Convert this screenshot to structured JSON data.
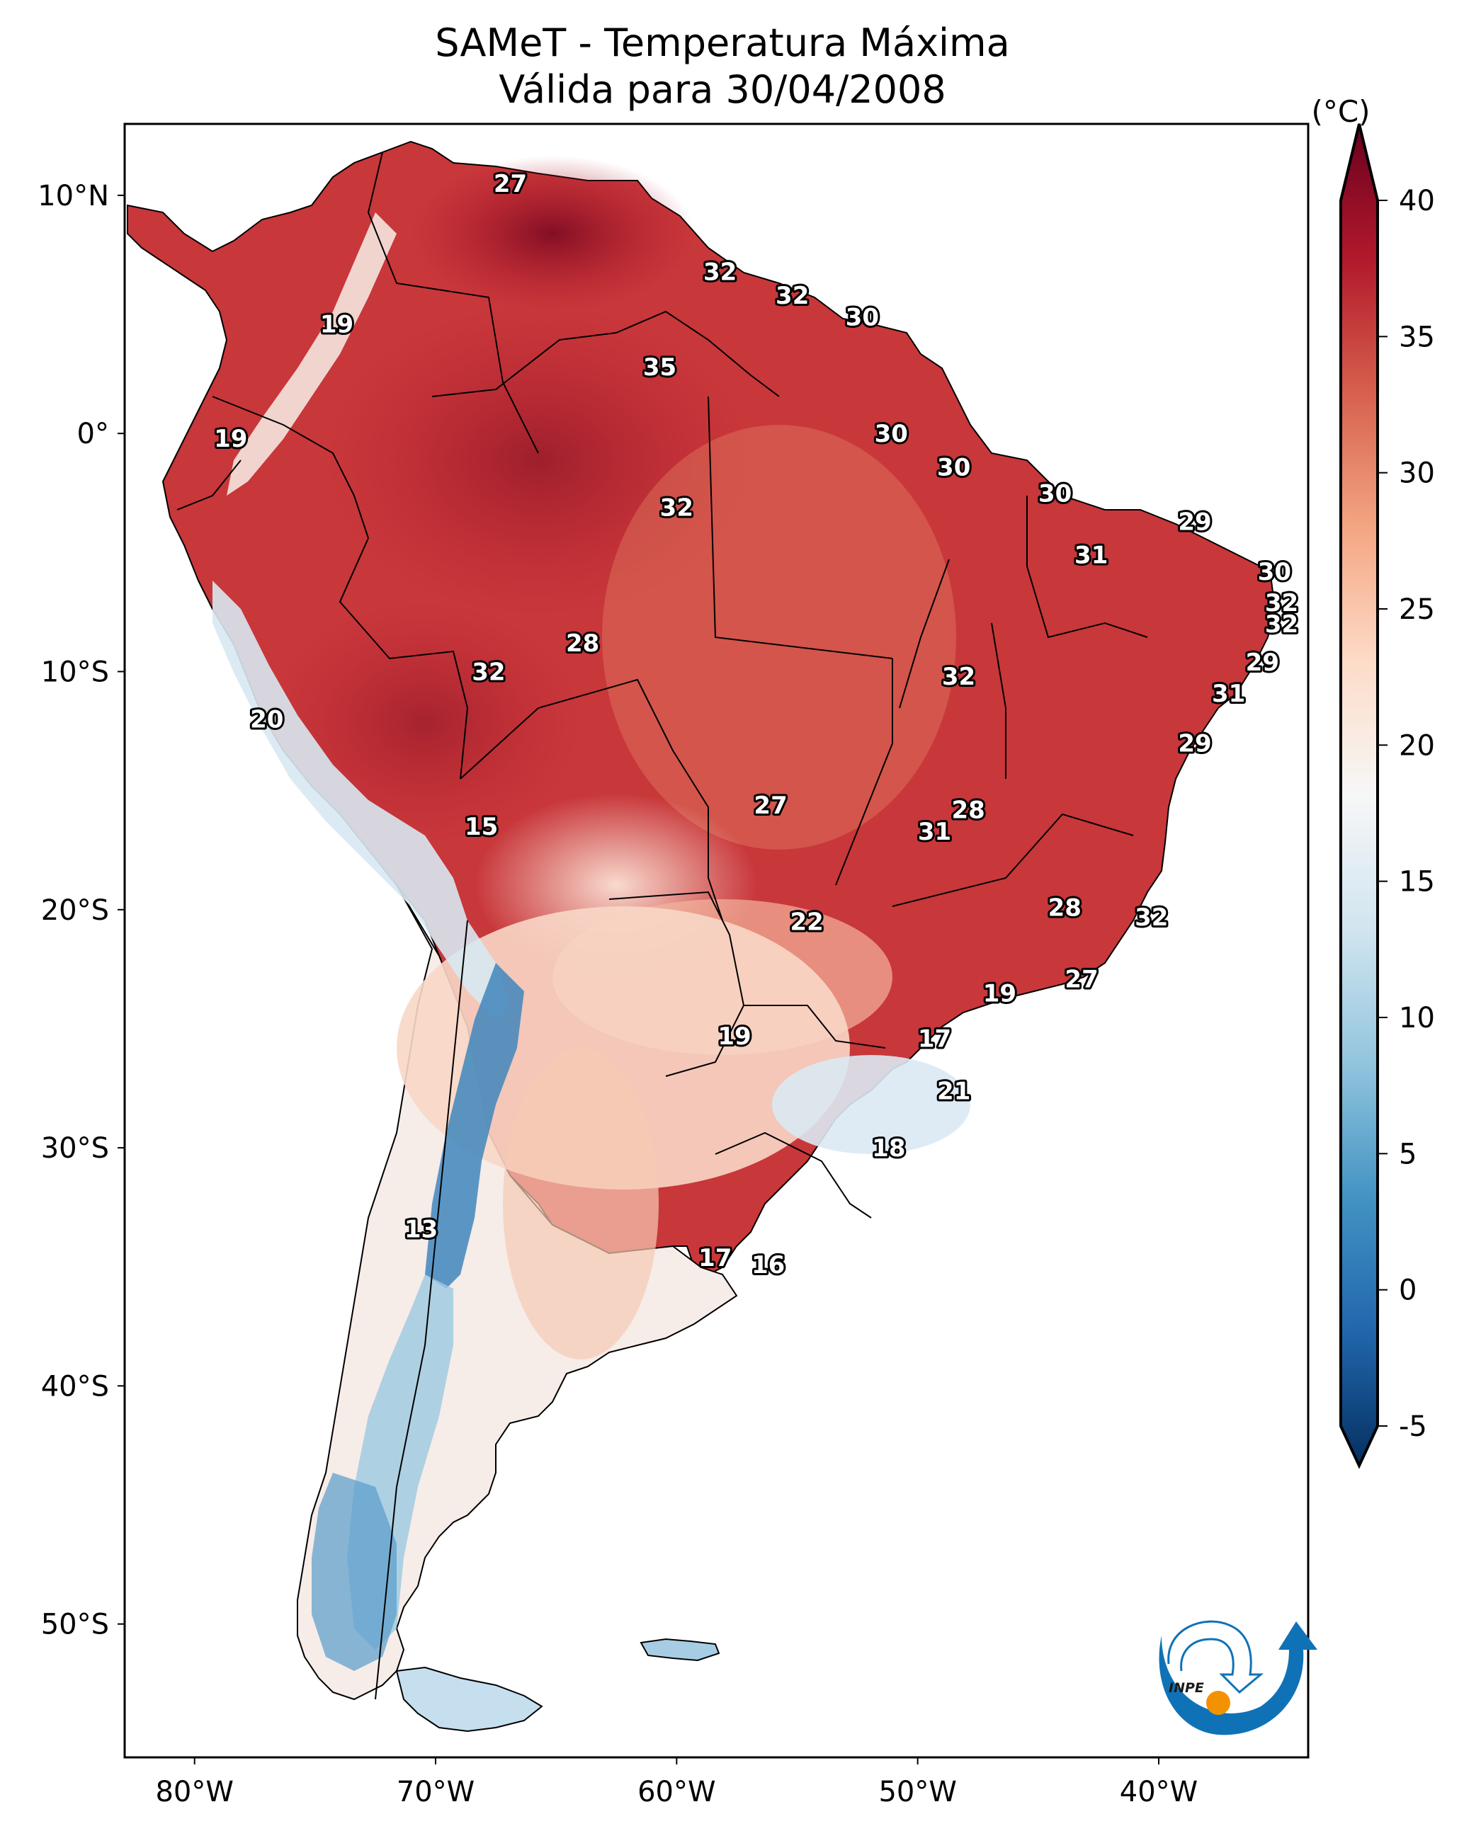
{
  "figure": {
    "title_line1": "SAMeT - Temperatura Máxima",
    "title_line2": "Válida para 30/04/2008",
    "logo_text": "INPE"
  },
  "chart_data": {
    "type": "heatmap",
    "subtype": "geographic filled-contour map of maximum temperature over South America",
    "title": "SAMeT - Temperatura Máxima",
    "subtitle": "Válida para 30/04/2008",
    "projection": "PlateCarree",
    "extent": {
      "lon": [
        -82.9,
        -33.8
      ],
      "lat": [
        -55.6,
        13.0
      ]
    },
    "x_ticks": [
      {
        "value": -80,
        "label": "80°W"
      },
      {
        "value": -70,
        "label": "70°W"
      },
      {
        "value": -60,
        "label": "60°W"
      },
      {
        "value": -50,
        "label": "50°W"
      },
      {
        "value": -40,
        "label": "40°W"
      }
    ],
    "y_ticks": [
      {
        "value": 10,
        "label": "10°N"
      },
      {
        "value": 0,
        "label": "0°"
      },
      {
        "value": -10,
        "label": "10°S"
      },
      {
        "value": -20,
        "label": "20°S"
      },
      {
        "value": -30,
        "label": "30°S"
      },
      {
        "value": -40,
        "label": "40°S"
      },
      {
        "value": -50,
        "label": "50°S"
      }
    ],
    "grid": false,
    "colorbar": {
      "label": "(°C)",
      "colormap": "RdBu_r",
      "range": [
        -5,
        40
      ],
      "extend": "both",
      "ticks": [
        -5,
        0,
        5,
        10,
        15,
        20,
        25,
        30,
        35,
        40
      ],
      "placement": "right",
      "stops": [
        "#053061",
        "#2166ac",
        "#4393c3",
        "#92c5de",
        "#d1e5f0",
        "#f7f7f7",
        "#fddbc7",
        "#f4a582",
        "#d6604d",
        "#b2182b",
        "#67001f"
      ]
    },
    "city_values": [
      {
        "lon": -66.9,
        "lat": 10.5,
        "value": 27
      },
      {
        "lon": -58.2,
        "lat": 6.8,
        "value": 32
      },
      {
        "lon": -55.2,
        "lat": 5.8,
        "value": 32
      },
      {
        "lon": -52.3,
        "lat": 4.9,
        "value": 30
      },
      {
        "lon": -74.1,
        "lat": 4.6,
        "value": 19
      },
      {
        "lon": -60.7,
        "lat": 2.8,
        "value": 35
      },
      {
        "lon": -78.5,
        "lat": -0.2,
        "value": 19
      },
      {
        "lon": -51.1,
        "lat": 0.0,
        "value": 30
      },
      {
        "lon": -48.5,
        "lat": -1.4,
        "value": 30
      },
      {
        "lon": -44.3,
        "lat": -2.5,
        "value": 30
      },
      {
        "lon": -60.0,
        "lat": -3.1,
        "value": 32
      },
      {
        "lon": -38.5,
        "lat": -3.7,
        "value": 29
      },
      {
        "lon": -42.8,
        "lat": -5.1,
        "value": 31
      },
      {
        "lon": -35.2,
        "lat": -5.8,
        "value": 30
      },
      {
        "lon": -34.9,
        "lat": -7.1,
        "value": 32
      },
      {
        "lon": -34.9,
        "lat": -8.0,
        "value": 32
      },
      {
        "lon": -63.9,
        "lat": -8.8,
        "value": 28
      },
      {
        "lon": -35.7,
        "lat": -9.6,
        "value": 29
      },
      {
        "lon": -67.8,
        "lat": -10.0,
        "value": 32
      },
      {
        "lon": -48.3,
        "lat": -10.2,
        "value": 32
      },
      {
        "lon": -37.1,
        "lat": -10.9,
        "value": 31
      },
      {
        "lon": -77.0,
        "lat": -12.0,
        "value": 20
      },
      {
        "lon": -38.5,
        "lat": -13.0,
        "value": 29
      },
      {
        "lon": -56.1,
        "lat": -15.6,
        "value": 27
      },
      {
        "lon": -47.9,
        "lat": -15.8,
        "value": 28
      },
      {
        "lon": -49.3,
        "lat": -16.7,
        "value": 31
      },
      {
        "lon": -68.1,
        "lat": -16.5,
        "value": 15
      },
      {
        "lon": -43.9,
        "lat": -19.9,
        "value": 28
      },
      {
        "lon": -40.3,
        "lat": -20.3,
        "value": 32
      },
      {
        "lon": -54.6,
        "lat": -20.5,
        "value": 22
      },
      {
        "lon": -43.2,
        "lat": -22.9,
        "value": 27
      },
      {
        "lon": -46.6,
        "lat": -23.5,
        "value": 19
      },
      {
        "lon": -57.6,
        "lat": -25.3,
        "value": 19
      },
      {
        "lon": -49.3,
        "lat": -25.4,
        "value": 17
      },
      {
        "lon": -48.5,
        "lat": -27.6,
        "value": 21
      },
      {
        "lon": -51.2,
        "lat": -30.0,
        "value": 18
      },
      {
        "lon": -70.6,
        "lat": -33.4,
        "value": 13
      },
      {
        "lon": -58.4,
        "lat": -34.6,
        "value": 17
      },
      {
        "lon": -56.2,
        "lat": -34.9,
        "value": 16
      }
    ]
  }
}
